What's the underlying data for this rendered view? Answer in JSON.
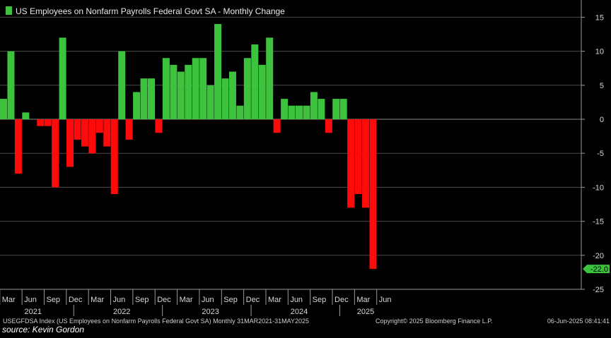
{
  "chart_data": {
    "type": "bar",
    "title": "US Employees on Nonfarm Payrolls Federal Govt SA - Monthly Change",
    "categories": [
      "Mar 2021",
      "Apr 2021",
      "May 2021",
      "Jun 2021",
      "Jul 2021",
      "Aug 2021",
      "Sep 2021",
      "Oct 2021",
      "Nov 2021",
      "Dec 2021",
      "Jan 2022",
      "Feb 2022",
      "Mar 2022",
      "Apr 2022",
      "May 2022",
      "Jun 2022",
      "Jul 2022",
      "Aug 2022",
      "Sep 2022",
      "Oct 2022",
      "Nov 2022",
      "Dec 2022",
      "Jan 2023",
      "Feb 2023",
      "Mar 2023",
      "Apr 2023",
      "May 2023",
      "Jun 2023",
      "Jul 2023",
      "Aug 2023",
      "Sep 2023",
      "Oct 2023",
      "Nov 2023",
      "Dec 2023",
      "Jan 2024",
      "Feb 2024",
      "Mar 2024",
      "Apr 2024",
      "May 2024",
      "Jun 2024",
      "Jul 2024",
      "Aug 2024",
      "Sep 2024",
      "Oct 2024",
      "Nov 2024",
      "Dec 2024",
      "Jan 2025",
      "Feb 2025",
      "Mar 2025",
      "Apr 2025",
      "May 2025"
    ],
    "values": [
      3,
      10,
      -8,
      1,
      0,
      -1,
      -1,
      -10,
      12,
      -7,
      -3,
      -4,
      -5,
      -2,
      -4,
      -11,
      10,
      -3,
      4,
      6,
      6,
      -2,
      9,
      8,
      7,
      8,
      9,
      9,
      5,
      14,
      6,
      7,
      2,
      9,
      11,
      8,
      12,
      -2,
      3,
      2,
      2,
      2,
      4,
      3,
      -2,
      3,
      3,
      -13,
      -11,
      -13,
      -22
    ],
    "ylim": [
      -25,
      17
    ],
    "yticks": [
      -25,
      -20,
      -15,
      -10,
      -5,
      0,
      5,
      10,
      15
    ],
    "x_tick_labels": [
      {
        "label": "Mar",
        "index": 0
      },
      {
        "label": "Jun",
        "index": 3
      },
      {
        "label": "Sep",
        "index": 6
      },
      {
        "label": "Dec",
        "index": 9
      },
      {
        "label": "Mar",
        "index": 12
      },
      {
        "label": "Jun",
        "index": 15
      },
      {
        "label": "Sep",
        "index": 18
      },
      {
        "label": "Dec",
        "index": 21
      },
      {
        "label": "Mar",
        "index": 24
      },
      {
        "label": "Jun",
        "index": 27
      },
      {
        "label": "Sep",
        "index": 30
      },
      {
        "label": "Dec",
        "index": 33
      },
      {
        "label": "Mar",
        "index": 36
      },
      {
        "label": "Jun",
        "index": 39
      },
      {
        "label": "Sep",
        "index": 42
      },
      {
        "label": "Dec",
        "index": 45
      },
      {
        "label": "Mar",
        "index": 48
      },
      {
        "label": "Jun",
        "index": 51
      }
    ],
    "year_labels": [
      {
        "label": "2021",
        "index": 4
      },
      {
        "label": "2022",
        "index": 16
      },
      {
        "label": "2023",
        "index": 28
      },
      {
        "label": "2024",
        "index": 40
      },
      {
        "label": "2025",
        "index": 49
      }
    ],
    "last_value_label": "-22.0",
    "positive_color": "#3cc23c",
    "negative_color": "#ff0a0a",
    "grid": true,
    "legend": "top-left",
    "footer": {
      "index_desc": "USEGFDSA Index (US Employees on Nonfarm Payrolls Federal Govt SA)  Monthly 31MAR2021-31MAY2025",
      "copyright": "Copyright© 2025 Bloomberg Finance L.P.",
      "timestamp": "06-Jun-2025 08:41:41",
      "source": "source: Kevin Gordon"
    }
  }
}
